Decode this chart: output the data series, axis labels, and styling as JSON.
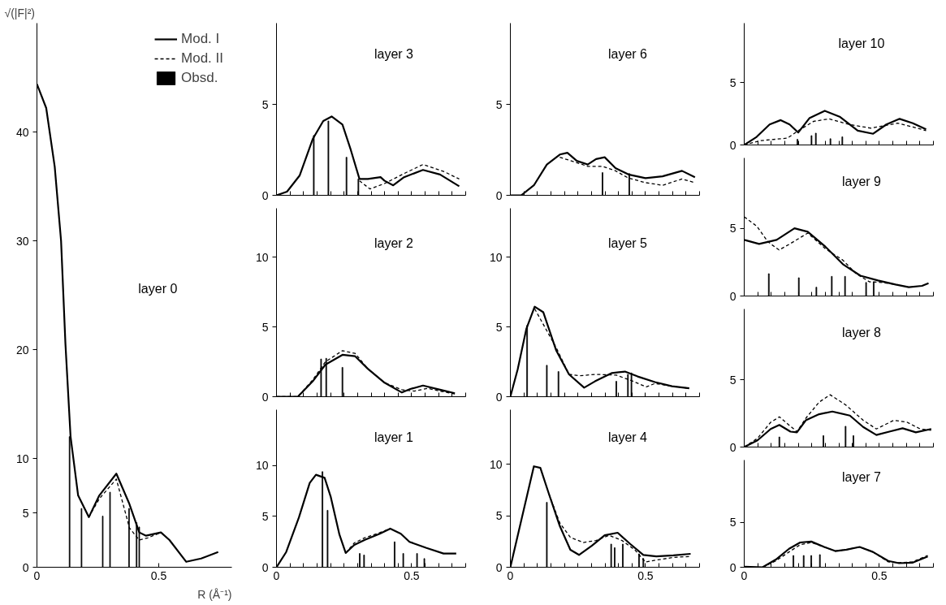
{
  "chart_data": [
    {
      "type": "line",
      "title": "layer 0",
      "xlabel": "R (Å⁻¹)",
      "ylabel": "√(|F|²)",
      "xlim": [
        0,
        0.8
      ],
      "ylim": [
        0,
        50
      ],
      "xticks": [
        0,
        0.5
      ],
      "yticks": [
        0,
        5,
        10,
        20,
        30,
        40
      ],
      "legend": "top right",
      "series": [
        {
          "name": "Mod. I",
          "color": "#000000",
          "line_style": "solid",
          "x": [
            0,
            0.038,
            0.073,
            0.099,
            0.117,
            0.138,
            0.169,
            0.213,
            0.256,
            0.326,
            0.378,
            0.42,
            0.448,
            0.509,
            0.544,
            0.613,
            0.674,
            0.744
          ],
          "values": [
            44.4,
            42.2,
            36.8,
            30,
            20.5,
            12,
            6.6,
            4.6,
            6.6,
            8.6,
            5.9,
            3.2,
            2.9,
            3.2,
            2.5,
            0.5,
            0.8,
            1.4
          ]
        },
        {
          "name": "Mod. II",
          "color": "#000000",
          "line_style": "dashed",
          "x": [
            0.213,
            0.256,
            0.326,
            0.38,
            0.42,
            0.455,
            0.51
          ],
          "values": [
            4.6,
            6.3,
            8.1,
            3.6,
            2.5,
            2.7,
            3.2
          ]
        },
        {
          "name": "Obsd.",
          "type": "bar",
          "color": "#000000",
          "x": [
            0.134,
            0.183,
            0.27,
            0.3,
            0.378,
            0.409,
            0.42
          ],
          "values": [
            12,
            5.4,
            4.7,
            6.9,
            5.4,
            4.1,
            3.7
          ]
        }
      ]
    },
    {
      "type": "line",
      "title": "layer 3",
      "xlim": [
        0,
        0.7
      ],
      "ylim": [
        0,
        9.5
      ],
      "yticks": [
        0,
        5
      ],
      "tick_labels": "y",
      "xticks": [
        0,
        {
          "value": 0.05,
          "label": null
        },
        {
          "value": 0.1,
          "label": null
        },
        {
          "value": 0.15,
          "label": null
        },
        {
          "value": 0.2,
          "label": null
        },
        {
          "value": 0.25,
          "label": null
        },
        {
          "value": 0.3,
          "label": null
        },
        {
          "value": 0.35,
          "label": null
        },
        {
          "value": 0.4,
          "label": null
        },
        {
          "value": 0.45,
          "label": null
        },
        0.5,
        {
          "value": 0.55,
          "label": null
        },
        {
          "value": 0.6,
          "label": null
        },
        {
          "value": 0.65,
          "label": null
        },
        {
          "value": 0.7,
          "label": null
        }
      ],
      "series": [
        {
          "color": "#000000",
          "line_style": "solid",
          "x": [
            0,
            0.039,
            0.086,
            0.134,
            0.173,
            0.204,
            0.244,
            0.275,
            0.307,
            0.338,
            0.385,
            0.4,
            0.432,
            0.472,
            0.542,
            0.605,
            0.676
          ],
          "values": [
            0,
            0.2,
            1.1,
            3.1,
            4.1,
            4.35,
            3.9,
            2.5,
            0.9,
            0.9,
            1.0,
            0.8,
            0.55,
            1.0,
            1.4,
            1.15,
            0.5
          ]
        },
        {
          "color": "#000000",
          "line_style": "dashed",
          "x": [
            0.307,
            0.346,
            0.4,
            0.472,
            0.542,
            0.621,
            0.676
          ],
          "values": [
            0.8,
            0.35,
            0.65,
            1.2,
            1.7,
            1.3,
            0.9
          ]
        },
        {
          "type": "bar",
          "color": "#000000",
          "x": [
            0.138,
            0.192,
            0.259,
            0.303
          ],
          "values": [
            3.3,
            4.1,
            2.1,
            0.9
          ]
        }
      ]
    },
    {
      "type": "line",
      "title": "layer 6",
      "xlim": [
        0,
        0.7
      ],
      "ylim": [
        0,
        9.5
      ],
      "yticks": [
        0,
        5
      ],
      "tick_labels": "y",
      "xticks": [
        0,
        {
          "value": 0.05,
          "label": null
        },
        {
          "value": 0.1,
          "label": null
        },
        {
          "value": 0.15,
          "label": null
        },
        {
          "value": 0.2,
          "label": null
        },
        {
          "value": 0.25,
          "label": null
        },
        {
          "value": 0.3,
          "label": null
        },
        {
          "value": 0.35,
          "label": null
        },
        {
          "value": 0.4,
          "label": null
        },
        {
          "value": 0.45,
          "label": null
        },
        0.5,
        {
          "value": 0.55,
          "label": null
        },
        {
          "value": 0.6,
          "label": null
        },
        {
          "value": 0.65,
          "label": null
        },
        {
          "value": 0.7,
          "label": null
        }
      ],
      "series": [
        {
          "color": "#000000",
          "line_style": "solid",
          "x": [
            0,
            0.04,
            0.087,
            0.135,
            0.183,
            0.211,
            0.246,
            0.286,
            0.317,
            0.349,
            0.389,
            0.437,
            0.5,
            0.563,
            0.635,
            0.683
          ],
          "values": [
            0,
            0,
            0.55,
            1.7,
            2.25,
            2.35,
            1.9,
            1.7,
            2.0,
            2.1,
            1.5,
            1.15,
            0.95,
            1.05,
            1.35,
            1.0
          ]
        },
        {
          "color": "#000000",
          "line_style": "dashed",
          "x": [
            0.183,
            0.246,
            0.286,
            0.341,
            0.389,
            0.437,
            0.5,
            0.563,
            0.635,
            0.683
          ],
          "values": [
            2.1,
            1.8,
            1.6,
            1.6,
            1.35,
            0.95,
            0.7,
            0.55,
            0.9,
            0.7
          ]
        },
        {
          "type": "bar",
          "color": "#000000",
          "x": [
            0.341,
            0.44
          ],
          "values": [
            1.25,
            1.2
          ]
        }
      ]
    },
    {
      "type": "line",
      "title": "layer 10",
      "xlim": [
        0,
        0.7
      ],
      "ylim": [
        0,
        9.8
      ],
      "yticks": [
        0,
        5
      ],
      "tick_labels": "y",
      "xticks": [
        0,
        {
          "value": 0.05,
          "label": null
        },
        {
          "value": 0.1,
          "label": null
        },
        {
          "value": 0.15,
          "label": null
        },
        {
          "value": 0.2,
          "label": null
        },
        {
          "value": 0.25,
          "label": null
        },
        {
          "value": 0.3,
          "label": null
        },
        {
          "value": 0.35,
          "label": null
        },
        {
          "value": 0.4,
          "label": null
        },
        {
          "value": 0.45,
          "label": null
        },
        0.5,
        {
          "value": 0.55,
          "label": null
        },
        {
          "value": 0.6,
          "label": null
        },
        {
          "value": 0.65,
          "label": null
        },
        {
          "value": 0.7,
          "label": null
        }
      ],
      "series": [
        {
          "color": "#000000",
          "line_style": "solid",
          "x": [
            0,
            0.046,
            0.094,
            0.135,
            0.168,
            0.2,
            0.241,
            0.298,
            0.355,
            0.42,
            0.477,
            0.526,
            0.575,
            0.624,
            0.673
          ],
          "values": [
            0,
            0.65,
            1.65,
            2.0,
            1.65,
            1.0,
            2.15,
            2.75,
            2.25,
            1.15,
            0.9,
            1.65,
            2.1,
            1.75,
            1.25
          ]
        },
        {
          "color": "#000000",
          "line_style": "dashed",
          "x": [
            0,
            0.062,
            0.16,
            0.2,
            0.257,
            0.314,
            0.388,
            0.469,
            0.567,
            0.624,
            0.673
          ],
          "values": [
            0,
            0.35,
            0.55,
            1.15,
            1.9,
            2.1,
            1.65,
            1.35,
            1.75,
            1.45,
            1.15
          ]
        },
        {
          "type": "bar",
          "color": "#000000",
          "x": [
            0.197,
            0.249,
            0.265,
            0.319,
            0.363
          ],
          "values": [
            0.45,
            0.75,
            0.95,
            0.5,
            0.65
          ]
        }
      ]
    },
    {
      "type": "line",
      "title": "layer 9",
      "xlim": [
        0,
        0.7
      ],
      "ylim": [
        0,
        10.2
      ],
      "yticks": [
        0,
        5
      ],
      "tick_labels": "y",
      "xticks": [
        0,
        {
          "value": 0.05,
          "label": null
        },
        {
          "value": 0.1,
          "label": null
        },
        {
          "value": 0.15,
          "label": null
        },
        {
          "value": 0.2,
          "label": null
        },
        {
          "value": 0.25,
          "label": null
        },
        {
          "value": 0.3,
          "label": null
        },
        {
          "value": 0.35,
          "label": null
        },
        {
          "value": 0.4,
          "label": null
        },
        {
          "value": 0.45,
          "label": null
        },
        0.5,
        {
          "value": 0.55,
          "label": null
        },
        {
          "value": 0.6,
          "label": null
        },
        {
          "value": 0.65,
          "label": null
        },
        {
          "value": 0.7,
          "label": null
        }
      ],
      "series": [
        {
          "color": "#000000",
          "line_style": "solid",
          "x": [
            0,
            0.055,
            0.12,
            0.186,
            0.235,
            0.3,
            0.365,
            0.43,
            0.495,
            0.56,
            0.609,
            0.658,
            0.682
          ],
          "values": [
            4.15,
            3.85,
            4.15,
            5.0,
            4.75,
            3.65,
            2.35,
            1.5,
            1.15,
            0.85,
            0.65,
            0.75,
            0.95
          ]
        },
        {
          "color": "#000000",
          "line_style": "dashed",
          "x": [
            0,
            0.047,
            0.088,
            0.129,
            0.169,
            0.235,
            0.3,
            0.365,
            0.414,
            0.463,
            0.511,
            0.56
          ],
          "values": [
            5.85,
            5.15,
            4.0,
            3.4,
            3.85,
            4.65,
            3.5,
            2.65,
            1.65,
            1.05,
            1.0,
            0.85
          ]
        },
        {
          "type": "bar",
          "color": "#000000",
          "x": [
            0.091,
            0.202,
            0.267,
            0.324,
            0.373,
            0.451,
            0.479
          ],
          "values": [
            1.65,
            1.35,
            0.65,
            1.45,
            1.45,
            1.0,
            1.05
          ]
        }
      ]
    },
    {
      "type": "line",
      "title": "layer 2",
      "xlim": [
        0,
        0.7
      ],
      "ylim": [
        0,
        13.5
      ],
      "yticks": [
        0,
        5,
        10
      ],
      "tick_labels": "y",
      "xticks": [
        0,
        {
          "value": 0.05,
          "label": null
        },
        {
          "value": 0.1,
          "label": null
        },
        {
          "value": 0.15,
          "label": null
        },
        {
          "value": 0.2,
          "label": null
        },
        {
          "value": 0.25,
          "label": null
        },
        {
          "value": 0.3,
          "label": null
        },
        {
          "value": 0.35,
          "label": null
        },
        {
          "value": 0.4,
          "label": null
        },
        {
          "value": 0.45,
          "label": null
        },
        0.5,
        {
          "value": 0.55,
          "label": null
        },
        {
          "value": 0.6,
          "label": null
        },
        {
          "value": 0.65,
          "label": null
        },
        {
          "value": 0.7,
          "label": null
        }
      ],
      "series": [
        {
          "color": "#000000",
          "line_style": "solid",
          "x": [
            0,
            0.079,
            0.134,
            0.181,
            0.244,
            0.291,
            0.338,
            0.4,
            0.464,
            0.495,
            0.542,
            0.605,
            0.66
          ],
          "values": [
            0,
            0,
            1.1,
            2.3,
            3.0,
            2.9,
            2.0,
            1.0,
            0.3,
            0.55,
            0.8,
            0.5,
            0.25
          ]
        },
        {
          "color": "#000000",
          "line_style": "dashed",
          "x": [
            0,
            0.079,
            0.134,
            0.181,
            0.244,
            0.291,
            0.338,
            0.4,
            0.464,
            0.51,
            0.56,
            0.605,
            0.66
          ],
          "values": [
            0,
            0,
            1.2,
            2.5,
            3.3,
            3.1,
            2.0,
            1.0,
            0.5,
            0.4,
            0.6,
            0.4,
            0.2
          ]
        },
        {
          "type": "bar",
          "color": "#000000",
          "x": [
            0.165,
            0.184,
            0.244
          ],
          "values": [
            2.7,
            2.75,
            2.1
          ]
        }
      ]
    },
    {
      "type": "line",
      "title": "layer 5",
      "xlim": [
        0,
        0.7
      ],
      "ylim": [
        0,
        13.5
      ],
      "yticks": [
        0,
        5,
        10
      ],
      "tick_labels": "y",
      "xticks": [
        0,
        {
          "value": 0.05,
          "label": null
        },
        {
          "value": 0.1,
          "label": null
        },
        {
          "value": 0.15,
          "label": null
        },
        {
          "value": 0.2,
          "label": null
        },
        {
          "value": 0.25,
          "label": null
        },
        {
          "value": 0.3,
          "label": null
        },
        {
          "value": 0.35,
          "label": null
        },
        {
          "value": 0.4,
          "label": null
        },
        {
          "value": 0.45,
          "label": null
        },
        0.5,
        {
          "value": 0.55,
          "label": null
        },
        {
          "value": 0.6,
          "label": null
        },
        {
          "value": 0.65,
          "label": null
        },
        {
          "value": 0.7,
          "label": null
        }
      ],
      "series": [
        {
          "color": "#000000",
          "line_style": "solid",
          "x": [
            0,
            0.027,
            0.059,
            0.09,
            0.122,
            0.17,
            0.217,
            0.273,
            0.313,
            0.376,
            0.424,
            0.471,
            0.535,
            0.598,
            0.662
          ],
          "values": [
            0,
            1.95,
            4.85,
            6.45,
            6.05,
            3.3,
            1.6,
            0.65,
            1.1,
            1.7,
            1.8,
            1.45,
            1.05,
            0.75,
            0.6
          ]
        },
        {
          "color": "#000000",
          "line_style": "dashed",
          "x": [
            0.09,
            0.17,
            0.217,
            0.257,
            0.313,
            0.392,
            0.455,
            0.503,
            0.535,
            0.598,
            0.662
          ],
          "values": [
            6.3,
            3.5,
            1.6,
            1.5,
            1.6,
            1.55,
            1.1,
            0.7,
            0.95,
            0.75,
            0.6
          ]
        },
        {
          "type": "bar",
          "color": "#000000",
          "x": [
            0.062,
            0.135,
            0.178,
            0.392,
            0.435,
            0.448
          ],
          "values": [
            5.1,
            2.25,
            1.8,
            1.1,
            1.6,
            1.7
          ]
        }
      ]
    },
    {
      "type": "line",
      "title": "layer 8",
      "xlim": [
        0,
        0.7
      ],
      "ylim": [
        0,
        10.3
      ],
      "yticks": [
        0,
        5
      ],
      "tick_labels": "y",
      "xticks": [
        0,
        {
          "value": 0.05,
          "label": null
        },
        {
          "value": 0.1,
          "label": null
        },
        {
          "value": 0.15,
          "label": null
        },
        {
          "value": 0.2,
          "label": null
        },
        {
          "value": 0.25,
          "label": null
        },
        {
          "value": 0.3,
          "label": null
        },
        {
          "value": 0.35,
          "label": null
        },
        {
          "value": 0.4,
          "label": null
        },
        {
          "value": 0.45,
          "label": null
        },
        0.5,
        {
          "value": 0.55,
          "label": null
        },
        {
          "value": 0.6,
          "label": null
        },
        {
          "value": 0.65,
          "label": null
        },
        {
          "value": 0.7,
          "label": null
        }
      ],
      "series": [
        {
          "color": "#000000",
          "line_style": "solid",
          "x": [
            0,
            0.049,
            0.098,
            0.13,
            0.171,
            0.195,
            0.228,
            0.277,
            0.326,
            0.391,
            0.44,
            0.489,
            0.537,
            0.586,
            0.635,
            0.692
          ],
          "values": [
            0,
            0.5,
            1.35,
            1.65,
            1.15,
            1.1,
            2.0,
            2.45,
            2.65,
            2.35,
            1.5,
            0.9,
            1.15,
            1.4,
            1.1,
            1.35
          ]
        },
        {
          "color": "#000000",
          "line_style": "dashed",
          "x": [
            0,
            0.049,
            0.098,
            0.13,
            0.171,
            0.195,
            0.228,
            0.277,
            0.318,
            0.375,
            0.44,
            0.489,
            0.554,
            0.603,
            0.651,
            0.692
          ],
          "values": [
            0,
            0.65,
            1.85,
            2.25,
            1.55,
            1.15,
            2.15,
            3.35,
            3.9,
            3.15,
            2.0,
            1.35,
            2.0,
            1.85,
            1.35,
            1.25
          ]
        },
        {
          "type": "bar",
          "color": "#000000",
          "x": [
            0.13,
            0.293,
            0.375,
            0.404
          ],
          "values": [
            0.75,
            0.85,
            1.55,
            0.85
          ]
        }
      ]
    },
    {
      "type": "line",
      "title": "layer 1",
      "xlim": [
        0,
        0.7
      ],
      "ylim": [
        0,
        15.5
      ],
      "yticks": [
        0,
        5,
        10
      ],
      "xticks": [
        0,
        {
          "value": 0.05,
          "label": null
        },
        {
          "value": 0.1,
          "label": null
        },
        {
          "value": 0.15,
          "label": null
        },
        {
          "value": 0.2,
          "label": null
        },
        {
          "value": 0.25,
          "label": null
        },
        {
          "value": 0.3,
          "label": null
        },
        {
          "value": 0.35,
          "label": null
        },
        {
          "value": 0.4,
          "label": null
        },
        {
          "value": 0.45,
          "label": null
        },
        0.5,
        {
          "value": 0.55,
          "label": null
        },
        {
          "value": 0.6,
          "label": null
        },
        {
          "value": 0.65,
          "label": null
        },
        {
          "value": 0.7,
          "label": null
        }
      ],
      "series": [
        {
          "color": "#000000",
          "line_style": "solid",
          "x": [
            0,
            0.036,
            0.083,
            0.123,
            0.146,
            0.178,
            0.201,
            0.233,
            0.256,
            0.288,
            0.327,
            0.382,
            0.421,
            0.46,
            0.492,
            0.555,
            0.618,
            0.665
          ],
          "values": [
            0,
            1.5,
            4.9,
            8.3,
            9.1,
            8.8,
            6.9,
            3.2,
            1.4,
            2.2,
            2.7,
            3.3,
            3.8,
            3.3,
            2.5,
            1.9,
            1.35,
            1.35
          ]
        },
        {
          "color": "#000000",
          "line_style": "dashed",
          "x": [
            0.256,
            0.288,
            0.327,
            0.382,
            0.421
          ],
          "values": [
            1.4,
            2.4,
            2.9,
            3.4,
            3.8
          ]
        },
        {
          "type": "bar",
          "color": "#000000",
          "x": [
            0.17,
            0.189,
            0.308,
            0.324,
            0.437,
            0.469,
            0.52,
            0.547
          ],
          "values": [
            9.4,
            5.6,
            1.35,
            1.2,
            2.5,
            1.35,
            1.35,
            0.85
          ]
        }
      ]
    },
    {
      "type": "line",
      "title": "layer 4",
      "xlim": [
        0,
        0.7
      ],
      "ylim": [
        0,
        15.3
      ],
      "yticks": [
        0,
        5,
        10
      ],
      "xticks": [
        0,
        {
          "value": 0.05,
          "label": null
        },
        {
          "value": 0.1,
          "label": null
        },
        {
          "value": 0.15,
          "label": null
        },
        {
          "value": 0.2,
          "label": null
        },
        {
          "value": 0.25,
          "label": null
        },
        {
          "value": 0.3,
          "label": null
        },
        {
          "value": 0.35,
          "label": null
        },
        {
          "value": 0.4,
          "label": null
        },
        {
          "value": 0.45,
          "label": null
        },
        0.5,
        {
          "value": 0.55,
          "label": null
        },
        {
          "value": 0.6,
          "label": null
        },
        {
          "value": 0.65,
          "label": null
        },
        {
          "value": 0.7,
          "label": null
        }
      ],
      "series": [
        {
          "color": "#000000",
          "line_style": "solid",
          "x": [
            0,
            0.032,
            0.063,
            0.087,
            0.111,
            0.143,
            0.183,
            0.222,
            0.254,
            0.302,
            0.349,
            0.397,
            0.444,
            0.492,
            0.54,
            0.603,
            0.667
          ],
          "values": [
            0,
            3.6,
            7.1,
            9.8,
            9.65,
            7.1,
            4.0,
            1.7,
            1.2,
            2.1,
            3.1,
            3.35,
            2.25,
            1.2,
            1.05,
            1.15,
            1.3
          ]
        },
        {
          "color": "#000000",
          "line_style": "dashed",
          "x": [
            0.143,
            0.183,
            0.222,
            0.27,
            0.317,
            0.365,
            0.413,
            0.46,
            0.5,
            0.54,
            0.603,
            0.667
          ],
          "values": [
            7.1,
            4.3,
            2.9,
            2.4,
            2.6,
            3.1,
            2.6,
            1.7,
            0.5,
            0.7,
            0.95,
            1.05
          ]
        },
        {
          "type": "bar",
          "color": "#000000",
          "x": [
            0.135,
            0.373,
            0.386,
            0.416,
            0.476,
            0.492
          ],
          "values": [
            6.3,
            2.25,
            1.9,
            2.25,
            1.3,
            0.85
          ]
        }
      ]
    },
    {
      "type": "line",
      "title": "layer 7",
      "xlim": [
        0,
        0.7
      ],
      "ylim": [
        0,
        11.9
      ],
      "yticks": [
        0,
        5
      ],
      "xticks": [
        0,
        {
          "value": 0.05,
          "label": null
        },
        {
          "value": 0.1,
          "label": null
        },
        {
          "value": 0.15,
          "label": null
        },
        {
          "value": 0.2,
          "label": null
        },
        {
          "value": 0.25,
          "label": null
        },
        {
          "value": 0.3,
          "label": null
        },
        {
          "value": 0.35,
          "label": null
        },
        {
          "value": 0.4,
          "label": null
        },
        {
          "value": 0.45,
          "label": null
        },
        0.5,
        {
          "value": 0.55,
          "label": null
        },
        {
          "value": 0.6,
          "label": null
        },
        {
          "value": 0.65,
          "label": null
        },
        {
          "value": 0.7,
          "label": null
        }
      ],
      "series": [
        {
          "color": "#000000",
          "line_style": "solid",
          "x": [
            0,
            0.068,
            0.117,
            0.166,
            0.207,
            0.248,
            0.296,
            0.337,
            0.378,
            0.427,
            0.476,
            0.533,
            0.573,
            0.622,
            0.679
          ],
          "values": [
            0.05,
            0,
            0.85,
            2.05,
            2.75,
            2.85,
            2.25,
            1.8,
            1.95,
            2.25,
            1.7,
            0.7,
            0.45,
            0.5,
            1.2
          ]
        },
        {
          "color": "#000000",
          "line_style": "dashed",
          "x": [
            0.068,
            0.117,
            0.166,
            0.207,
            0.248,
            0.296,
            0.337,
            0.378,
            0.427,
            0.476,
            0.533,
            0.573,
            0.622,
            0.679
          ],
          "values": [
            0,
            0.7,
            1.7,
            2.5,
            2.75,
            2.25,
            1.8,
            1.95,
            2.25,
            1.7,
            0.6,
            0.5,
            0.6,
            1.3
          ]
        },
        {
          "type": "bar",
          "color": "#000000",
          "x": [
            0.182,
            0.22,
            0.248,
            0.28
          ],
          "values": [
            1.3,
            1.3,
            1.3,
            1.4
          ]
        }
      ]
    }
  ]
}
